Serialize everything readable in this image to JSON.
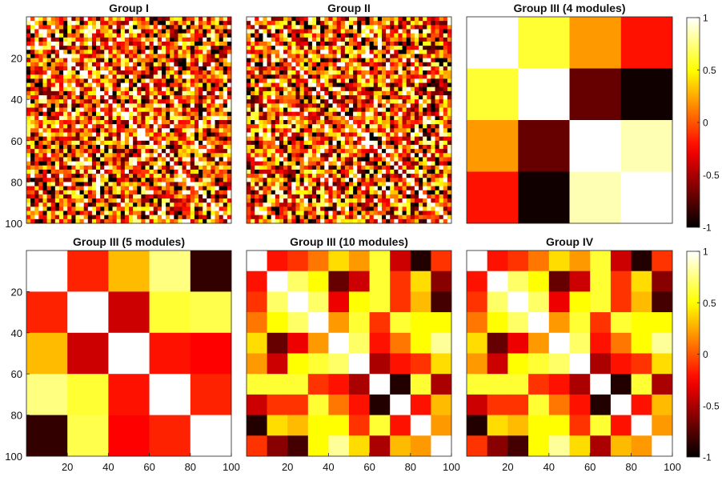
{
  "chart_data": [
    {
      "type": "heatmap",
      "title": "Group I",
      "pattern": "noise",
      "matrix_size": 100,
      "value_range": [
        -1,
        1
      ],
      "colormap": "hot",
      "yticks": [
        20,
        40,
        60,
        80,
        100
      ],
      "xticks": []
    },
    {
      "type": "heatmap",
      "title": "Group II",
      "pattern": "noise",
      "matrix_size": 100,
      "value_range": [
        -1,
        1
      ],
      "colormap": "hot",
      "yticks": [],
      "xticks": []
    },
    {
      "type": "heatmap",
      "title": "Group III (4 modules)",
      "pattern": "blocks",
      "matrix_size": 100,
      "value_range": [
        -1,
        1
      ],
      "colormap": "hot",
      "yticks": [],
      "xticks": [],
      "block_values": [
        [
          1.0,
          0.6,
          0.2,
          -0.2
        ],
        [
          0.6,
          1.0,
          -0.7,
          -0.95
        ],
        [
          0.2,
          -0.7,
          1.0,
          0.85
        ],
        [
          -0.2,
          -0.95,
          0.85,
          1.0
        ]
      ]
    },
    {
      "type": "heatmap",
      "title": "Group III (5 modules)",
      "pattern": "blocks",
      "matrix_size": 100,
      "value_range": [
        -1,
        1
      ],
      "colormap": "hot",
      "yticks": [
        20,
        40,
        60,
        80,
        100
      ],
      "xticks": [
        20,
        40,
        60,
        80,
        100
      ],
      "block_values": [
        [
          1.0,
          -0.15,
          0.3,
          0.75,
          -0.85
        ],
        [
          -0.15,
          1.0,
          -0.4,
          0.6,
          0.65
        ],
        [
          0.3,
          -0.4,
          1.0,
          -0.2,
          -0.25
        ],
        [
          0.75,
          0.6,
          -0.2,
          1.0,
          -0.15
        ],
        [
          -0.85,
          0.65,
          -0.25,
          -0.15,
          1.0
        ]
      ]
    },
    {
      "type": "heatmap",
      "title": "Group III (10 modules)",
      "pattern": "blocks",
      "matrix_size": 100,
      "value_range": [
        -1,
        1
      ],
      "colormap": "hot",
      "yticks": [],
      "xticks": [
        20,
        40,
        60,
        80,
        100
      ],
      "block_values": [
        [
          1.0,
          -0.2,
          -0.1,
          0.1,
          0.4,
          0.2,
          0.6,
          -0.4,
          -0.9,
          -0.1
        ],
        [
          -0.2,
          1.0,
          0.7,
          0.5,
          -0.7,
          -0.4,
          0.6,
          -0.1,
          0.4,
          -0.6
        ],
        [
          -0.1,
          0.7,
          1.0,
          0.7,
          -0.3,
          0.5,
          0.6,
          -0.1,
          0.3,
          -0.8
        ],
        [
          0.1,
          0.5,
          0.7,
          1.0,
          0.2,
          0.6,
          -0.1,
          0.6,
          0.5,
          0.5
        ],
        [
          0.4,
          -0.7,
          -0.3,
          0.2,
          1.0,
          0.7,
          -0.2,
          0.1,
          0.5,
          0.8
        ],
        [
          0.2,
          -0.4,
          0.5,
          0.6,
          0.7,
          1.0,
          -0.5,
          -0.2,
          -0.1,
          0.4
        ],
        [
          0.6,
          0.6,
          0.6,
          -0.1,
          -0.2,
          -0.5,
          1.0,
          -0.9,
          0.6,
          -0.5
        ],
        [
          -0.4,
          -0.1,
          -0.1,
          0.6,
          0.1,
          -0.2,
          -0.9,
          1.0,
          -0.2,
          0.3
        ],
        [
          -0.9,
          0.4,
          0.3,
          0.5,
          0.5,
          -0.1,
          0.6,
          -0.2,
          1.0,
          0.2
        ],
        [
          -0.1,
          -0.6,
          -0.8,
          0.5,
          0.8,
          0.4,
          -0.5,
          0.3,
          0.2,
          1.0
        ]
      ]
    },
    {
      "type": "heatmap",
      "title": "Group IV",
      "pattern": "blocks",
      "matrix_size": 100,
      "value_range": [
        -1,
        1
      ],
      "colormap": "hot",
      "yticks": [],
      "xticks": [
        20,
        40,
        60,
        80,
        100
      ],
      "block_values": [
        [
          1.0,
          -0.2,
          -0.1,
          0.1,
          0.4,
          0.2,
          0.6,
          -0.4,
          -0.9,
          -0.1
        ],
        [
          -0.2,
          1.0,
          0.7,
          0.5,
          -0.7,
          -0.4,
          0.6,
          -0.1,
          0.4,
          -0.6
        ],
        [
          -0.1,
          0.7,
          1.0,
          0.7,
          -0.3,
          0.5,
          0.6,
          -0.1,
          0.3,
          -0.8
        ],
        [
          0.1,
          0.5,
          0.7,
          1.0,
          0.2,
          0.6,
          -0.1,
          0.6,
          0.5,
          0.5
        ],
        [
          0.4,
          -0.7,
          -0.3,
          0.2,
          1.0,
          0.7,
          -0.2,
          0.1,
          0.5,
          0.8
        ],
        [
          0.2,
          -0.4,
          0.5,
          0.6,
          0.7,
          1.0,
          -0.5,
          -0.2,
          -0.1,
          0.4
        ],
        [
          0.6,
          0.6,
          0.6,
          -0.1,
          -0.2,
          -0.5,
          1.0,
          -0.9,
          0.6,
          -0.5
        ],
        [
          -0.4,
          -0.1,
          -0.1,
          0.6,
          0.1,
          -0.2,
          -0.9,
          1.0,
          -0.2,
          0.3
        ],
        [
          -0.9,
          0.4,
          0.3,
          0.5,
          0.5,
          -0.1,
          0.6,
          -0.2,
          1.0,
          0.2
        ],
        [
          -0.1,
          -0.6,
          -0.8,
          0.5,
          0.8,
          0.4,
          -0.5,
          0.3,
          0.2,
          1.0
        ]
      ]
    }
  ],
  "colorbars": [
    {
      "ticks": [
        1,
        0.5,
        0,
        -0.5,
        -1
      ],
      "tick_labels": [
        "1",
        "0.5",
        "0",
        "-0.5",
        "-1"
      ]
    },
    {
      "ticks": [
        1,
        0.5,
        0,
        -0.5,
        -1
      ],
      "tick_labels": [
        "1",
        "0.5",
        "0",
        "-0.5",
        "-1"
      ]
    }
  ]
}
